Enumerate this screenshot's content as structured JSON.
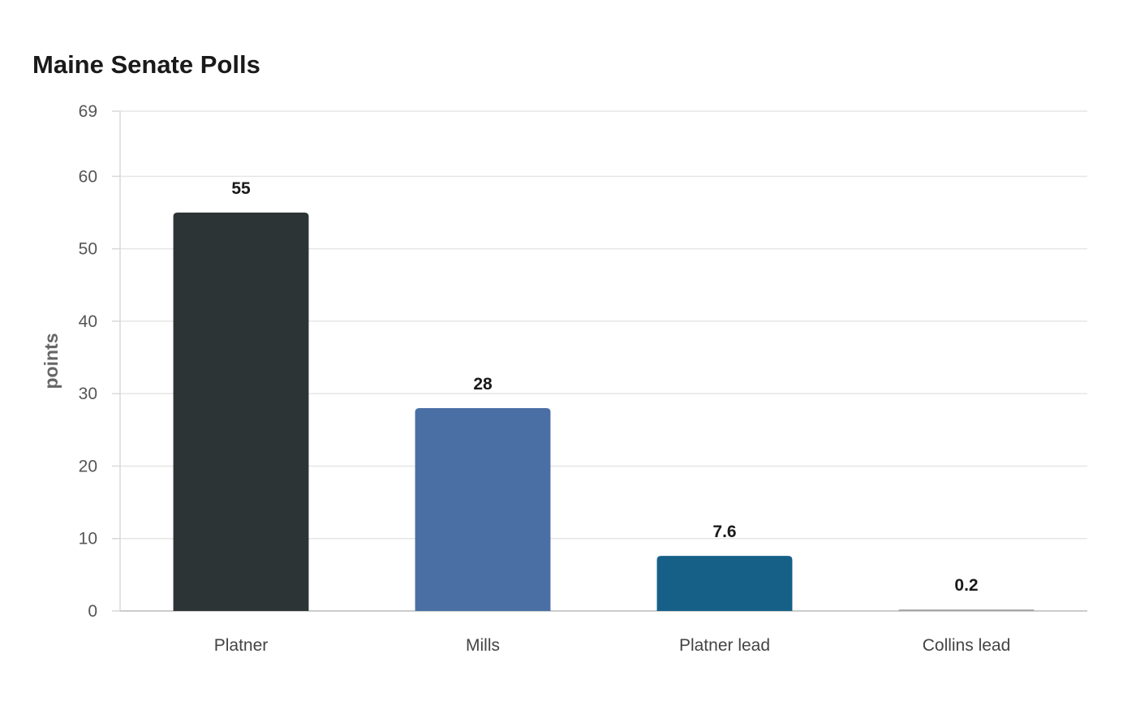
{
  "chart_data": {
    "type": "bar",
    "title": "Maine Senate Polls",
    "xlabel": "",
    "ylabel": "points",
    "categories": [
      "Platner",
      "Mills",
      "Platner lead",
      "Collins lead"
    ],
    "values": [
      55,
      28,
      7.6,
      0.2
    ],
    "value_labels": [
      "55",
      "28",
      "7.6",
      "0.2"
    ],
    "colors": [
      "#2d3436",
      "#4a6fa5",
      "#166088",
      "#a0a0a0"
    ],
    "ylim": [
      0,
      69
    ],
    "yticks": [
      0,
      10,
      20,
      30,
      40,
      50,
      60,
      69
    ],
    "grid": true,
    "legend": "none"
  }
}
